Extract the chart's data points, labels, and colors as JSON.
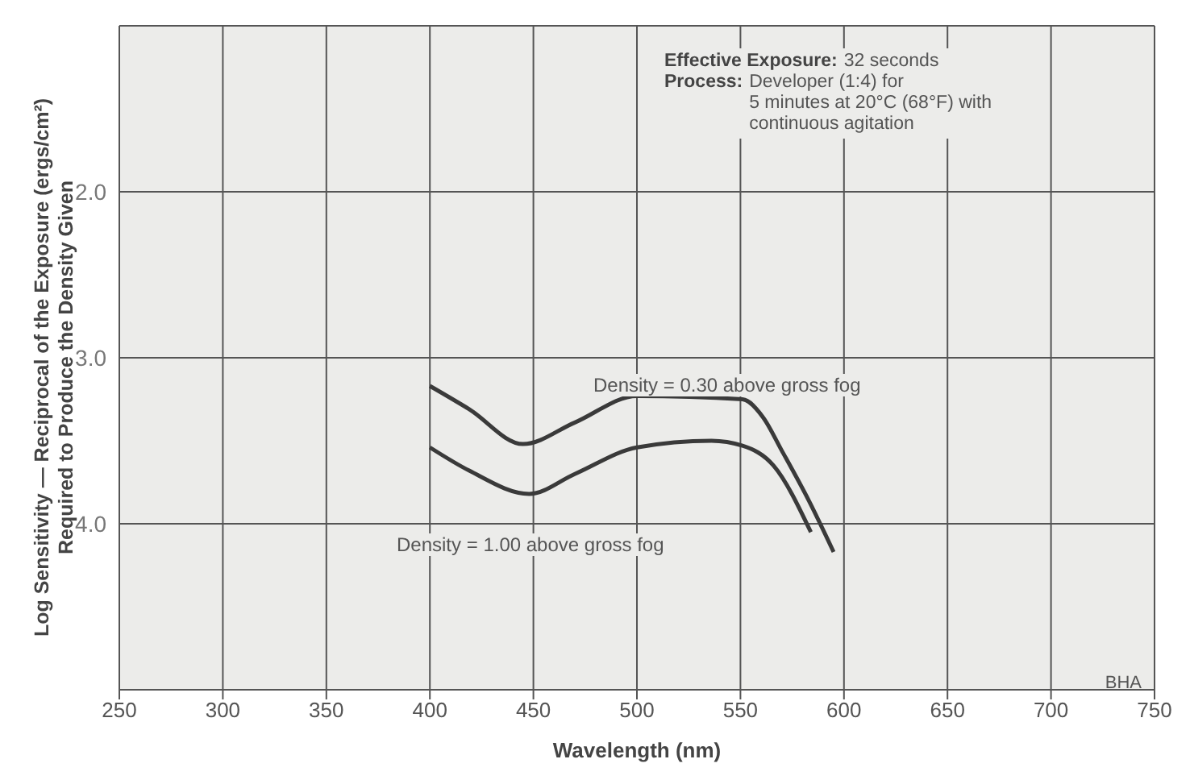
{
  "chart_data": {
    "type": "line",
    "xlabel": "Wavelength (nm)",
    "ylabel": "Log Sensitivity — Reciprocal of the Exposure (ergs/cm²)\nRequired to Produce the Density Given",
    "xlim": [
      250,
      750
    ],
    "xticks": [
      250,
      300,
      350,
      400,
      450,
      500,
      550,
      600,
      650,
      700,
      750
    ],
    "ylim": [
      5,
      1
    ],
    "yticks": [
      {
        "value": 2,
        "label": "2.0"
      },
      {
        "value": 3,
        "label": "3.0"
      },
      {
        "value": 4,
        "label": "4.0"
      }
    ],
    "grid": true,
    "line_style": "solid",
    "marker": "none",
    "series": [
      {
        "color": "#3a3a3a",
        "x": [
          400,
          419,
          445,
          470,
          500,
          551,
          561,
          570,
          583,
          595
        ],
        "values": [
          3.17,
          3.31,
          3.52,
          3.39,
          3.23,
          3.25,
          3.36,
          3.56,
          3.86,
          4.17
        ]
      },
      {
        "color": "#3a3a3a",
        "x": [
          400,
          419,
          448,
          470,
          500,
          536,
          551,
          566,
          584
        ],
        "values": [
          3.54,
          3.68,
          3.82,
          3.7,
          3.54,
          3.5,
          3.53,
          3.65,
          4.05
        ]
      }
    ],
    "annotations": [
      "Density = 0.30 above gross fog",
      "Density = 1.00 above gross fog",
      "Effective Exposure: 32 seconds",
      "Process: Developer (1:4) for\n5 minutes at 20°C (68°F) with\ncontinuous agitation",
      "BHA"
    ]
  }
}
